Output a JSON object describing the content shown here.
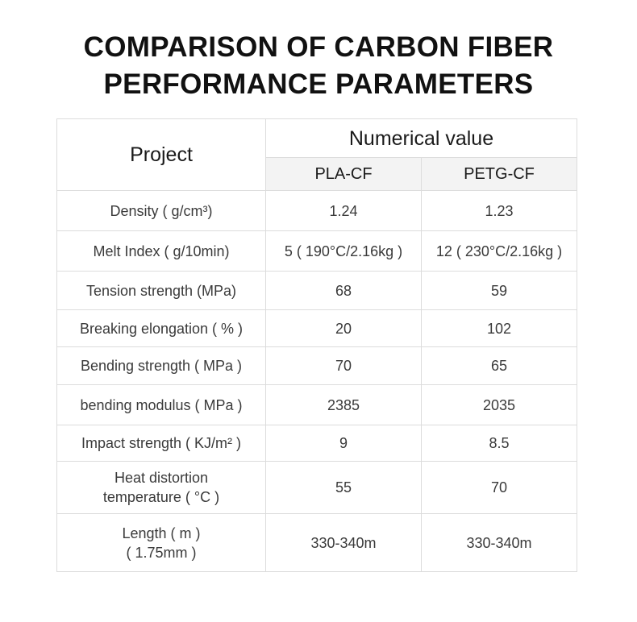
{
  "title": {
    "line1": "COMPARISON OF CARBON FIBER",
    "line2": "PERFORMANCE PARAMETERS"
  },
  "table": {
    "project_header": "Project",
    "value_header": "Numerical value",
    "columns": [
      "PLA-CF",
      "PETG-CF"
    ],
    "rows": [
      {
        "label": "Density ( g/cm³)",
        "pla": "1.24",
        "petg": "1.23"
      },
      {
        "label": "Melt Index ( g/10min)",
        "pla": "5 ( 190°C/2.16kg )",
        "petg": "12 ( 230°C/2.16kg )"
      },
      {
        "label": "Tension strength (MPa)",
        "pla": "68",
        "petg": "59"
      },
      {
        "label": "Breaking elongation ( % )",
        "pla": "20",
        "petg": "102"
      },
      {
        "label": "Bending strength ( MPa )",
        "pla": "70",
        "petg": "65"
      },
      {
        "label": "bending modulus ( MPa )",
        "pla": "2385",
        "petg": "2035"
      },
      {
        "label": "Impact strength ( KJ/m² )",
        "pla": "9",
        "petg": "8.5"
      },
      {
        "label_line1": "Heat distortion",
        "label_line2": "temperature ( °C )",
        "pla": "55",
        "petg": "70"
      },
      {
        "label_line1": "Length ( m )",
        "label_line2": "( 1.75mm )",
        "pla": "330-340m",
        "petg": "330-340m"
      }
    ]
  }
}
